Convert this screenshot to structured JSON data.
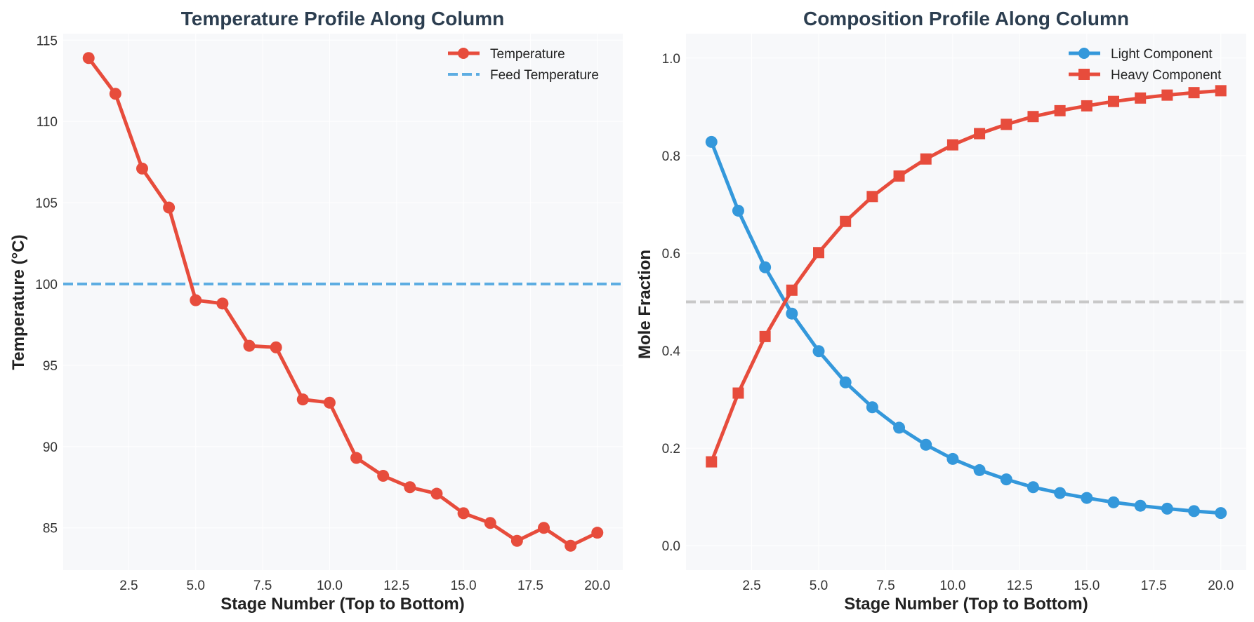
{
  "chart_data": [
    {
      "type": "line",
      "title": "Temperature Profile Along Column",
      "xlabel": "Stage Number (Top to Bottom)",
      "ylabel": "Temperature (°C)",
      "xlim": [
        0.05,
        20.95
      ],
      "ylim": [
        82.4,
        115.4
      ],
      "xticks": [
        2.5,
        5.0,
        7.5,
        10.0,
        12.5,
        15.0,
        17.5,
        20.0
      ],
      "xtick_labels": [
        "2.5",
        "5.0",
        "7.5",
        "10.0",
        "12.5",
        "15.0",
        "17.5",
        "20.0"
      ],
      "yticks": [
        85,
        90,
        95,
        100,
        105,
        110,
        115
      ],
      "ytick_labels": [
        "85",
        "90",
        "95",
        "100",
        "105",
        "110",
        "115"
      ],
      "grid": true,
      "legend_position": "top-right",
      "series": [
        {
          "name": "Temperature",
          "color": "#e74c3c",
          "marker": "circle",
          "x": [
            1,
            2,
            3,
            4,
            5,
            6,
            7,
            8,
            9,
            10,
            11,
            12,
            13,
            14,
            15,
            16,
            17,
            18,
            19,
            20
          ],
          "y": [
            113.9,
            111.7,
            107.1,
            104.7,
            99.0,
            98.8,
            96.2,
            96.1,
            92.9,
            92.7,
            89.3,
            88.2,
            87.5,
            87.1,
            85.9,
            85.3,
            84.2,
            85.0,
            83.9,
            84.7
          ]
        }
      ],
      "reference_lines": [
        {
          "name": "Feed Temperature",
          "y": 100,
          "color": "#5dade2",
          "style": "dashed"
        }
      ]
    },
    {
      "type": "line",
      "title": "Composition Profile Along Column",
      "xlabel": "Stage Number (Top to Bottom)",
      "ylabel": "Mole Fraction",
      "xlim": [
        0.05,
        20.95
      ],
      "ylim": [
        -0.05,
        1.05
      ],
      "xticks": [
        2.5,
        5.0,
        7.5,
        10.0,
        12.5,
        15.0,
        17.5,
        20.0
      ],
      "xtick_labels": [
        "2.5",
        "5.0",
        "7.5",
        "10.0",
        "12.5",
        "15.0",
        "17.5",
        "20.0"
      ],
      "yticks": [
        0.0,
        0.2,
        0.4,
        0.6,
        0.8,
        1.0
      ],
      "ytick_labels": [
        "0.0",
        "0.2",
        "0.4",
        "0.6",
        "0.8",
        "1.0"
      ],
      "grid": true,
      "legend_position": "top-right",
      "series": [
        {
          "name": "Light Component",
          "color": "#3498db",
          "marker": "circle",
          "x": [
            1,
            2,
            3,
            4,
            5,
            6,
            7,
            8,
            9,
            10,
            11,
            12,
            13,
            14,
            15,
            16,
            17,
            18,
            19,
            20
          ],
          "y": [
            0.828,
            0.687,
            0.571,
            0.476,
            0.399,
            0.335,
            0.284,
            0.242,
            0.207,
            0.178,
            0.155,
            0.136,
            0.12,
            0.108,
            0.098,
            0.089,
            0.082,
            0.076,
            0.071,
            0.067
          ]
        },
        {
          "name": "Heavy Component",
          "color": "#e74c3c",
          "marker": "square",
          "x": [
            1,
            2,
            3,
            4,
            5,
            6,
            7,
            8,
            9,
            10,
            11,
            12,
            13,
            14,
            15,
            16,
            17,
            18,
            19,
            20
          ],
          "y": [
            0.172,
            0.313,
            0.429,
            0.524,
            0.601,
            0.665,
            0.716,
            0.758,
            0.793,
            0.822,
            0.845,
            0.864,
            0.88,
            0.892,
            0.902,
            0.911,
            0.918,
            0.924,
            0.929,
            0.933
          ]
        }
      ],
      "reference_lines": [
        {
          "y": 0.5,
          "color": "#c8c8c8",
          "style": "dashed"
        }
      ]
    }
  ]
}
